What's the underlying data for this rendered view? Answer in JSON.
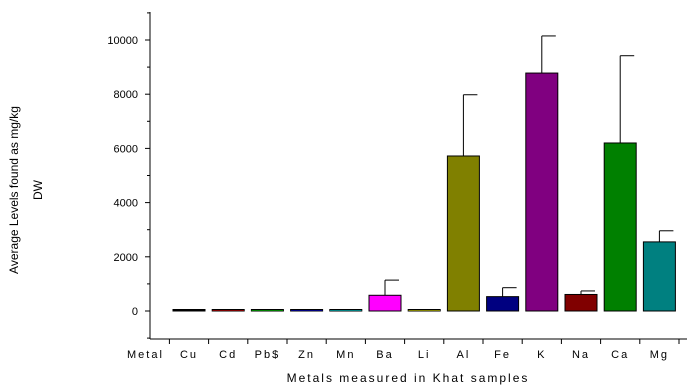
{
  "chart_data": {
    "type": "bar",
    "title": "",
    "xlabel": "Metals measured in Khat samples",
    "ylabel_lines": [
      "Average Levels found as mg/kg",
      "DW"
    ],
    "x_first_label": "Metal",
    "categories": [
      "Cu",
      "Cd",
      "Pb$",
      "Zn",
      "Mn",
      "Ba",
      "Li",
      "Al",
      "Fe",
      "K",
      "Na",
      "Ca",
      "Mg"
    ],
    "values": [
      30,
      20,
      20,
      50,
      20,
      580,
      20,
      5720,
      530,
      8780,
      610,
      6200,
      2550
    ],
    "errors": [
      0,
      0,
      0,
      0,
      0,
      560,
      0,
      2260,
      330,
      1370,
      130,
      3220,
      410
    ],
    "colors": [
      "#000000",
      "#ff0000",
      "#00ff00",
      "#0000ff",
      "#00ffff",
      "#ff00ff",
      "#ffff00",
      "#808000",
      "#000080",
      "#800080",
      "#800000",
      "#008000",
      "#008080"
    ],
    "ylim": [
      -1000,
      11000
    ],
    "yticks": [
      0,
      2000,
      4000,
      6000,
      8000,
      10000
    ],
    "ytick_labels": [
      "0",
      "2000",
      "4000",
      "6000",
      "8000",
      "10000"
    ],
    "grid": false,
    "legend": "none"
  }
}
